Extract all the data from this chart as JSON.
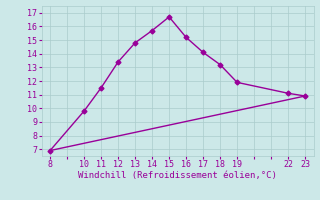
{
  "line1_x": [
    8,
    10,
    11,
    12,
    13,
    14,
    15,
    16,
    17,
    18,
    19,
    22,
    23
  ],
  "line1_y": [
    6.9,
    9.8,
    11.5,
    13.4,
    14.8,
    15.7,
    16.7,
    15.2,
    14.1,
    13.2,
    11.9,
    11.1,
    10.9
  ],
  "line2_x": [
    8,
    23
  ],
  "line2_y": [
    6.9,
    10.9
  ],
  "line_color": "#990099",
  "bg_color": "#cce8e8",
  "grid_color": "#aacccc",
  "xlabel": "Windchill (Refroidissement éolien,°C)",
  "xlabel_color": "#990099",
  "xlim": [
    7.5,
    23.5
  ],
  "ylim": [
    6.5,
    17.5
  ],
  "xticks": [
    8,
    9,
    10,
    11,
    12,
    13,
    14,
    15,
    16,
    17,
    18,
    19,
    20,
    21,
    22,
    23
  ],
  "xtick_labels": [
    "8",
    "",
    "10",
    "11",
    "12",
    "13",
    "14",
    "15",
    "16",
    "17",
    "18",
    "19",
    "",
    "",
    "22",
    "23"
  ],
  "yticks": [
    7,
    8,
    9,
    10,
    11,
    12,
    13,
    14,
    15,
    16,
    17
  ],
  "ytick_labels": [
    "7",
    "8",
    "9",
    "10",
    "11",
    "12",
    "13",
    "14",
    "15",
    "16",
    "17"
  ],
  "tick_color": "#990099",
  "marker": "D",
  "marker_size": 2.5,
  "line_width": 1.0,
  "tick_fontsize": 6.0,
  "xlabel_fontsize": 6.5
}
